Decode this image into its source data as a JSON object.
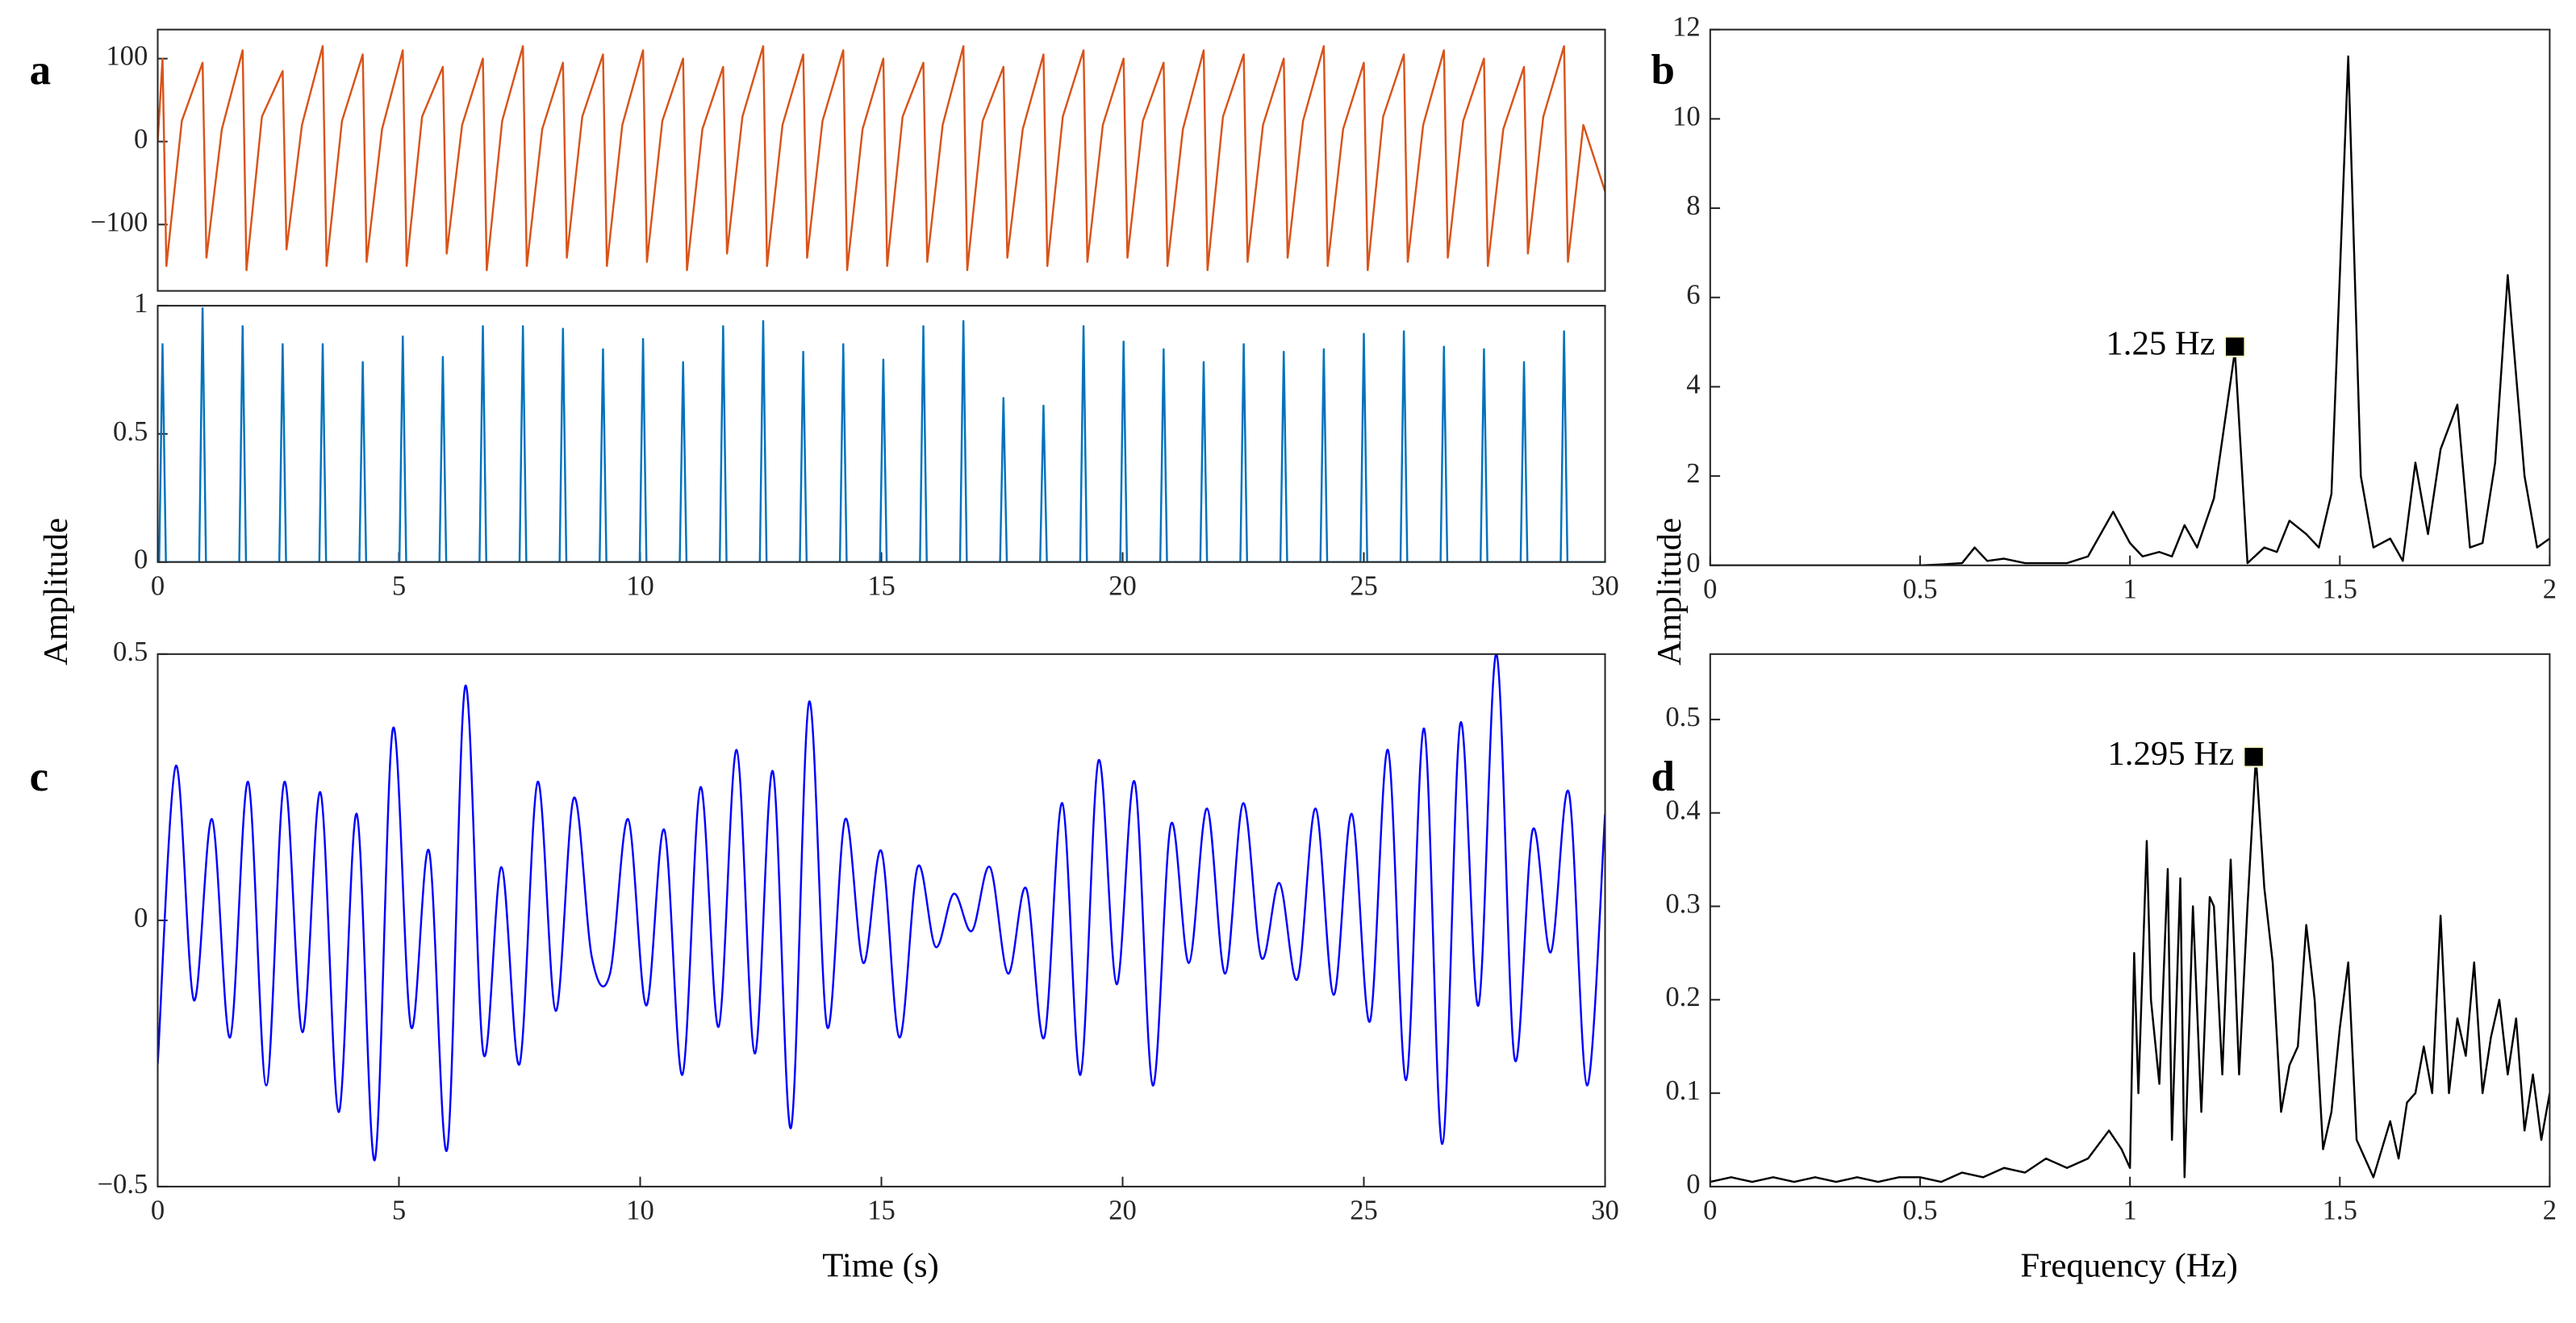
{
  "chart_data": [
    {
      "type": "line",
      "label": "a",
      "color": "#d95319",
      "xlim": [
        0,
        30
      ],
      "ylim": [
        -180,
        135
      ],
      "yticks": [
        {
          "value": -100,
          "label": "−100"
        },
        0,
        100
      ],
      "x": [
        0,
        0.1,
        0.18,
        0.5,
        0.93,
        1.01,
        1.33,
        1.76,
        1.84,
        2.16,
        2.59,
        2.67,
        2.99,
        3.42,
        3.5,
        3.82,
        4.25,
        4.33,
        4.65,
        5.08,
        5.16,
        5.48,
        5.91,
        5.99,
        6.31,
        6.74,
        6.82,
        7.14,
        7.57,
        7.65,
        7.97,
        8.4,
        8.48,
        8.8,
        9.23,
        9.31,
        9.63,
        10.06,
        10.14,
        10.46,
        10.89,
        10.97,
        11.29,
        11.72,
        11.8,
        12.12,
        12.55,
        12.63,
        12.95,
        13.38,
        13.46,
        13.78,
        14.21,
        14.29,
        14.61,
        15.04,
        15.12,
        15.44,
        15.87,
        15.95,
        16.27,
        16.7,
        16.78,
        17.1,
        17.53,
        17.61,
        17.93,
        18.36,
        18.44,
        18.76,
        19.19,
        19.27,
        19.59,
        20.02,
        20.1,
        20.42,
        20.85,
        20.93,
        21.25,
        21.68,
        21.76,
        22.08,
        22.51,
        22.59,
        22.91,
        23.34,
        23.42,
        23.74,
        24.17,
        24.25,
        24.57,
        25,
        25.08,
        25.4,
        25.83,
        25.91,
        26.23,
        26.66,
        26.74,
        27.06,
        27.49,
        27.57,
        27.89,
        28.32,
        28.4,
        28.72,
        29.15,
        29.23,
        29.55,
        30
      ],
      "values": [
        0,
        100,
        -150,
        25,
        95,
        -140,
        15,
        110,
        -155,
        30,
        85,
        -130,
        20,
        115,
        -150,
        25,
        105,
        -145,
        15,
        110,
        -150,
        30,
        90,
        -135,
        20,
        100,
        -155,
        25,
        115,
        -150,
        15,
        95,
        -140,
        30,
        105,
        -150,
        20,
        110,
        -145,
        25,
        100,
        -155,
        15,
        90,
        -135,
        30,
        115,
        -150,
        20,
        105,
        -140,
        25,
        110,
        -155,
        15,
        100,
        -150,
        30,
        95,
        -145,
        20,
        115,
        -155,
        25,
        90,
        -140,
        15,
        105,
        -150,
        30,
        110,
        -145,
        20,
        100,
        -140,
        25,
        95,
        -150,
        15,
        110,
        -155,
        30,
        105,
        -145,
        20,
        100,
        -140,
        25,
        115,
        -150,
        15,
        95,
        -155,
        30,
        105,
        -145,
        20,
        110,
        -140,
        25,
        100,
        -150,
        15,
        90,
        -135,
        30,
        115,
        -145,
        20,
        -60
      ]
    },
    {
      "type": "line",
      "color": "#0072bd",
      "y_label": "Amplitude",
      "xlim": [
        0,
        30
      ],
      "ylim": [
        0,
        1
      ],
      "xticks": [
        0,
        5,
        10,
        15,
        20,
        25,
        30
      ],
      "yticks": [
        0,
        0.5,
        1
      ],
      "x": [
        0.03,
        0.1,
        0.17,
        0.86,
        0.93,
        1.0,
        1.69,
        1.76,
        1.83,
        2.52,
        2.59,
        2.66,
        3.35,
        3.42,
        3.49,
        4.18,
        4.25,
        4.32,
        5.01,
        5.08,
        5.15,
        5.84,
        5.91,
        5.98,
        6.67,
        6.74,
        6.81,
        7.5,
        7.57,
        7.64,
        8.33,
        8.4,
        8.47,
        9.16,
        9.23,
        9.3,
        9.99,
        10.06,
        10.13,
        10.82,
        10.89,
        10.96,
        11.65,
        11.72,
        11.79,
        12.48,
        12.55,
        12.62,
        13.31,
        13.38,
        13.45,
        14.14,
        14.21,
        14.28,
        14.97,
        15.04,
        15.11,
        15.8,
        15.87,
        15.94,
        16.63,
        16.7,
        16.77,
        17.46,
        17.53,
        17.6,
        18.29,
        18.36,
        18.43,
        19.12,
        19.19,
        19.26,
        19.95,
        20.02,
        20.09,
        20.78,
        20.85,
        20.92,
        21.61,
        21.68,
        21.75,
        22.44,
        22.51,
        22.58,
        23.27,
        23.34,
        23.41,
        24.1,
        24.17,
        24.24,
        24.93,
        25,
        25.07,
        25.76,
        25.83,
        25.9,
        26.59,
        26.66,
        26.73,
        27.42,
        27.49,
        27.56,
        28.25,
        28.32,
        28.39,
        29.08,
        29.15,
        29.22,
        30
      ],
      "values": [
        0,
        0.85,
        0,
        0,
        0.99,
        0,
        0,
        0.92,
        0,
        0,
        0.85,
        0,
        0,
        0.85,
        0,
        0,
        0.78,
        0,
        0,
        0.88,
        0,
        0,
        0.8,
        0,
        0,
        0.92,
        0,
        0,
        0.92,
        0,
        0,
        0.91,
        0,
        0,
        0.83,
        0,
        0,
        0.87,
        0,
        0,
        0.78,
        0,
        0,
        0.92,
        0,
        0,
        0.94,
        0,
        0,
        0.82,
        0,
        0,
        0.85,
        0,
        0,
        0.79,
        0,
        0,
        0.92,
        0,
        0,
        0.94,
        0,
        0,
        0.64,
        0,
        0,
        0.61,
        0,
        0,
        0.92,
        0,
        0,
        0.86,
        0,
        0,
        0.83,
        0,
        0,
        0.78,
        0,
        0,
        0.85,
        0,
        0,
        0.82,
        0,
        0,
        0.83,
        0,
        0,
        0.89,
        0,
        0,
        0.9,
        0,
        0,
        0.84,
        0,
        0,
        0.83,
        0,
        0,
        0.78,
        0,
        0,
        0.9,
        0,
        0
      ]
    },
    {
      "type": "line",
      "label": "c",
      "color": "#0000ff",
      "smooth": true,
      "x_label": "Time (s)",
      "xlim": [
        0,
        30
      ],
      "ylim": [
        -0.5,
        0.5
      ],
      "xticks": [
        0,
        5,
        10,
        15,
        20,
        25,
        30
      ],
      "yticks": [
        {
          "value": -0.5,
          "label": "−0.5"
        },
        0,
        0.5
      ],
      "x": [
        0,
        0.375,
        0.75,
        1.125,
        1.5,
        1.875,
        2.25,
        2.625,
        3,
        3.375,
        3.75,
        4.125,
        4.5,
        4.875,
        5.25,
        5.625,
        6,
        6.375,
        6.75,
        7.125,
        7.5,
        7.875,
        8.25,
        8.625,
        9,
        9.375,
        9.75,
        10.125,
        10.5,
        10.875,
        11.25,
        11.625,
        12,
        12.375,
        12.75,
        13.125,
        13.5,
        13.875,
        14.25,
        14.625,
        15,
        15.375,
        15.75,
        16.125,
        16.5,
        16.875,
        17.25,
        17.625,
        18,
        18.375,
        18.75,
        19.125,
        19.5,
        19.875,
        20.25,
        20.625,
        21,
        21.375,
        21.75,
        22.125,
        22.5,
        22.875,
        23.25,
        23.625,
        24,
        24.375,
        24.75,
        25.125,
        25.5,
        25.875,
        26.25,
        26.625,
        27,
        27.375,
        27.75,
        28.125,
        28.5,
        28.875,
        29.25,
        29.625,
        30
      ],
      "values": [
        -0.27,
        0.29,
        -0.15,
        0.19,
        -0.22,
        0.26,
        -0.31,
        0.26,
        -0.21,
        0.24,
        -0.36,
        0.2,
        -0.45,
        0.36,
        -0.2,
        0.13,
        -0.43,
        0.44,
        -0.25,
        0.1,
        -0.27,
        0.26,
        -0.17,
        0.23,
        -0.07,
        -0.1,
        0.19,
        -0.16,
        0.17,
        -0.29,
        0.25,
        -0.2,
        0.32,
        -0.25,
        0.28,
        -0.39,
        0.41,
        -0.2,
        0.19,
        -0.08,
        0.13,
        -0.22,
        0.1,
        -0.05,
        0.05,
        -0.02,
        0.1,
        -0.1,
        0.06,
        -0.22,
        0.22,
        -0.29,
        0.3,
        -0.12,
        0.26,
        -0.31,
        0.18,
        -0.08,
        0.21,
        -0.1,
        0.22,
        -0.07,
        0.07,
        -0.11,
        0.21,
        -0.14,
        0.2,
        -0.19,
        0.32,
        -0.3,
        0.36,
        -0.42,
        0.37,
        -0.16,
        0.5,
        -0.26,
        0.17,
        -0.06,
        0.24,
        -0.31,
        0.2
      ]
    },
    {
      "type": "line",
      "label": "b",
      "color": "#000000",
      "y_label": "Amplitude",
      "xlim": [
        0,
        2
      ],
      "ylim": [
        0,
        12
      ],
      "xticks": [
        0,
        0.5,
        1,
        1.5,
        2
      ],
      "yticks": [
        0,
        2,
        4,
        6,
        8,
        10,
        12
      ],
      "annotation": {
        "text": "1.25 Hz",
        "x": 1.25,
        "y": 4.9
      },
      "x": [
        0,
        0.1,
        0.2,
        0.3,
        0.4,
        0.5,
        0.55,
        0.6,
        0.63,
        0.66,
        0.7,
        0.75,
        0.8,
        0.85,
        0.9,
        0.96,
        1.0,
        1.03,
        1.07,
        1.1,
        1.13,
        1.16,
        1.2,
        1.25,
        1.28,
        1.32,
        1.35,
        1.38,
        1.42,
        1.45,
        1.48,
        1.52,
        1.55,
        1.58,
        1.62,
        1.65,
        1.68,
        1.71,
        1.74,
        1.78,
        1.81,
        1.84,
        1.87,
        1.9,
        1.94,
        1.97,
        2.0
      ],
      "values": [
        0,
        0,
        0,
        0,
        0,
        0,
        0.02,
        0.05,
        0.4,
        0.1,
        0.15,
        0.05,
        0.05,
        0.05,
        0.2,
        1.2,
        0.5,
        0.2,
        0.3,
        0.2,
        0.9,
        0.4,
        1.5,
        4.8,
        0.05,
        0.4,
        0.3,
        1.0,
        0.7,
        0.4,
        1.6,
        11.4,
        2.0,
        0.4,
        0.6,
        0.1,
        2.3,
        0.7,
        2.6,
        3.6,
        0.4,
        0.5,
        2.3,
        6.5,
        2.0,
        0.4,
        0.6
      ]
    },
    {
      "type": "line",
      "label": "d",
      "color": "#000000",
      "x_label": "Frequency (Hz)",
      "xlim": [
        0,
        2
      ],
      "ylim": [
        0,
        0.57
      ],
      "xticks": [
        0,
        0.5,
        1,
        1.5,
        2
      ],
      "yticks": [
        0,
        0.1,
        0.2,
        0.3,
        0.4,
        0.5
      ],
      "annotation": {
        "text": "1.295 Hz",
        "x": 1.295,
        "y": 0.46
      },
      "x": [
        0,
        0.05,
        0.1,
        0.15,
        0.2,
        0.25,
        0.3,
        0.35,
        0.4,
        0.45,
        0.5,
        0.55,
        0.6,
        0.65,
        0.7,
        0.75,
        0.8,
        0.85,
        0.9,
        0.95,
        0.98,
        1.0,
        1.01,
        1.02,
        1.04,
        1.05,
        1.07,
        1.09,
        1.1,
        1.12,
        1.13,
        1.15,
        1.17,
        1.19,
        1.2,
        1.22,
        1.24,
        1.26,
        1.28,
        1.3,
        1.32,
        1.34,
        1.36,
        1.38,
        1.4,
        1.42,
        1.44,
        1.46,
        1.48,
        1.5,
        1.52,
        1.54,
        1.56,
        1.58,
        1.6,
        1.62,
        1.64,
        1.66,
        1.68,
        1.7,
        1.72,
        1.74,
        1.76,
        1.78,
        1.8,
        1.82,
        1.84,
        1.86,
        1.88,
        1.9,
        1.92,
        1.94,
        1.96,
        1.98,
        2.0
      ],
      "values": [
        0.005,
        0.01,
        0.005,
        0.01,
        0.005,
        0.01,
        0.005,
        0.01,
        0.005,
        0.01,
        0.01,
        0.005,
        0.015,
        0.01,
        0.02,
        0.015,
        0.03,
        0.02,
        0.03,
        0.06,
        0.04,
        0.02,
        0.25,
        0.1,
        0.37,
        0.2,
        0.11,
        0.34,
        0.05,
        0.33,
        0.01,
        0.3,
        0.08,
        0.31,
        0.3,
        0.12,
        0.35,
        0.12,
        0.3,
        0.46,
        0.32,
        0.24,
        0.08,
        0.13,
        0.15,
        0.28,
        0.2,
        0.04,
        0.08,
        0.17,
        0.24,
        0.05,
        0.03,
        0.01,
        0.04,
        0.07,
        0.03,
        0.09,
        0.1,
        0.15,
        0.1,
        0.29,
        0.1,
        0.18,
        0.14,
        0.24,
        0.1,
        0.16,
        0.2,
        0.12,
        0.18,
        0.06,
        0.12,
        0.05,
        0.1
      ]
    }
  ]
}
